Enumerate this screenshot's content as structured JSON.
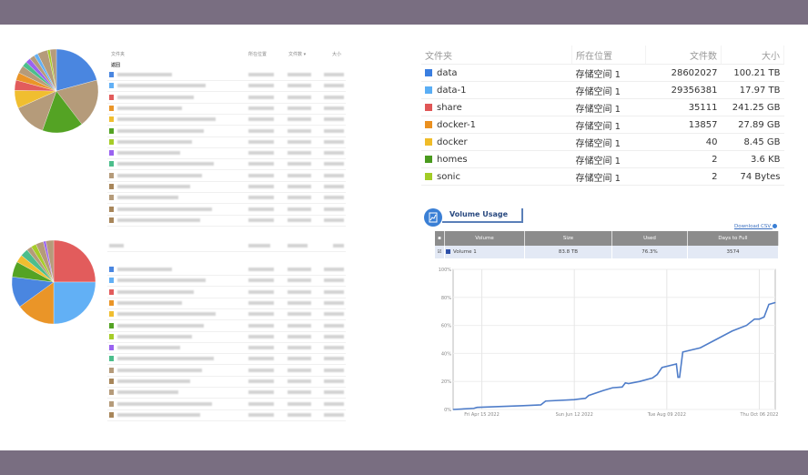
{
  "left_panel": {
    "header": {
      "folder": "文件夹",
      "location": "所在位置",
      "count": "文件数 ▾",
      "size": "大小"
    },
    "back_label": "返回",
    "pie1_slices": [
      {
        "color": "#4a86e0",
        "value": 21
      },
      {
        "color": "#b59b7a",
        "value": 19
      },
      {
        "color": "#54a324",
        "value": 16
      },
      {
        "color": "#b59b7a",
        "value": 13
      },
      {
        "color": "#f0be30",
        "value": 7
      },
      {
        "color": "#e25c5c",
        "value": 4
      },
      {
        "color": "#ea9528",
        "value": 3
      },
      {
        "color": "#b59b7a",
        "value": 3
      },
      {
        "color": "#4cbe8c",
        "value": 2
      },
      {
        "color": "#9a63f0",
        "value": 2
      },
      {
        "color": "#b59b7a",
        "value": 2
      },
      {
        "color": "#62b0f5",
        "value": 1.5
      },
      {
        "color": "#b59b7a",
        "value": 4
      },
      {
        "color": "#a6cc28",
        "value": 1
      },
      {
        "color": "#b59b7a",
        "value": 2.5
      }
    ],
    "pie2_slices": [
      {
        "color": "#e25c5c",
        "value": 25
      },
      {
        "color": "#62b0f5",
        "value": 25
      },
      {
        "color": "#ea9528",
        "value": 15
      },
      {
        "color": "#4a86e0",
        "value": 12
      },
      {
        "color": "#54a324",
        "value": 6
      },
      {
        "color": "#f0be30",
        "value": 3
      },
      {
        "color": "#4cbe8c",
        "value": 3
      },
      {
        "color": "#b59b7a",
        "value": 2
      },
      {
        "color": "#a6cc28",
        "value": 2
      },
      {
        "color": "#b59b7a",
        "value": 3
      },
      {
        "color": "#9a63f0",
        "value": 1
      },
      {
        "color": "#b59b7a",
        "value": 3
      }
    ],
    "list1_colors": [
      "#4a86e0",
      "#62b0f5",
      "#e25c5c",
      "#ea9528",
      "#f0be30",
      "#54a324",
      "#a6cc28",
      "#9a63f0",
      "#4cbe8c",
      "#b59b7a",
      "#a8865a",
      "#b59b7a",
      "#a8865a",
      "#a8865a"
    ],
    "list2_colors": [
      "#4a86e0",
      "#62b0f5",
      "#e25c5c",
      "#ea9528",
      "#f0be30",
      "#54a324",
      "#a6cc28",
      "#9a63f0",
      "#4cbe8c",
      "#b59b7a",
      "#a8865a",
      "#b59b7a",
      "#b59b7a",
      "#a8865a"
    ]
  },
  "folder_table": {
    "headers": {
      "folder": "文件夹",
      "location": "所在位置",
      "count": "文件数",
      "size": "大小"
    },
    "rows": [
      {
        "name": "data",
        "color": "#3a7ee0",
        "location": "存储空间 1",
        "count": "28602027",
        "size": "100.21 TB"
      },
      {
        "name": "data-1",
        "color": "#5aaef5",
        "location": "存储空间 1",
        "count": "29356381",
        "size": "17.97 TB"
      },
      {
        "name": "share",
        "color": "#e05656",
        "location": "存储空间 1",
        "count": "35111",
        "size": "241.25 GB"
      },
      {
        "name": "docker-1",
        "color": "#ea9020",
        "location": "存储空间 1",
        "count": "13857",
        "size": "27.89 GB"
      },
      {
        "name": "docker",
        "color": "#f0bc28",
        "location": "存储空间 1",
        "count": "40",
        "size": "8.45 GB"
      },
      {
        "name": "homes",
        "color": "#4a9a1e",
        "location": "存储空间 1",
        "count": "2",
        "size": "3.6 KB"
      },
      {
        "name": "sonic",
        "color": "#a2cc26",
        "location": "存储空间 1",
        "count": "2",
        "size": "74 Bytes"
      }
    ]
  },
  "volume_usage": {
    "title": "Volume Usage",
    "download_label": "Download CSV",
    "headers": {
      "volume": "Volume",
      "size": "Size",
      "used": "Used",
      "days": "Days to Full"
    },
    "row": {
      "volume": "Volume 1",
      "size": "83.8 TB",
      "used": "76.3%",
      "days": "3574",
      "color": "#2c4fa8"
    }
  },
  "chart_data": {
    "type": "line",
    "y_ticks": [
      "0%",
      "20%",
      "40%",
      "60%",
      "80%",
      "100%"
    ],
    "ylim": [
      0,
      100
    ],
    "x_ticks": [
      "Fri Apr 15 2022",
      "Sun Jun 12 2022",
      "Tue Aug 09 2022",
      "Thu Oct 06 2022"
    ],
    "xlim": [
      "2022-03-28",
      "2022-10-16"
    ],
    "grid": true,
    "color": "#4f7dc9",
    "series": [
      {
        "points": [
          [
            "2022-03-28",
            0
          ],
          [
            "2022-04-10",
            0.8
          ],
          [
            "2022-04-12",
            1.5
          ],
          [
            "2022-05-11",
            2.7
          ],
          [
            "2022-05-22",
            3.3
          ],
          [
            "2022-05-25",
            6
          ],
          [
            "2022-06-12",
            7
          ],
          [
            "2022-06-19",
            8
          ],
          [
            "2022-06-21",
            10
          ],
          [
            "2022-06-30",
            13.5
          ],
          [
            "2022-07-06",
            15.5
          ],
          [
            "2022-07-12",
            16
          ],
          [
            "2022-07-14",
            19
          ],
          [
            "2022-07-16",
            18.5
          ],
          [
            "2022-07-23",
            20
          ],
          [
            "2022-07-31",
            22.5
          ],
          [
            "2022-08-03",
            25
          ],
          [
            "2022-08-06",
            30
          ],
          [
            "2022-08-15",
            32.5
          ],
          [
            "2022-08-16",
            23
          ],
          [
            "2022-08-17",
            23
          ],
          [
            "2022-08-19",
            41
          ],
          [
            "2022-08-30",
            44
          ],
          [
            "2022-09-09",
            50
          ],
          [
            "2022-09-19",
            56
          ],
          [
            "2022-09-28",
            60
          ],
          [
            "2022-10-03",
            64.5
          ],
          [
            "2022-10-06",
            64.5
          ],
          [
            "2022-10-09",
            66
          ],
          [
            "2022-10-12",
            75
          ],
          [
            "2022-10-16",
            76.3
          ]
        ]
      }
    ]
  }
}
